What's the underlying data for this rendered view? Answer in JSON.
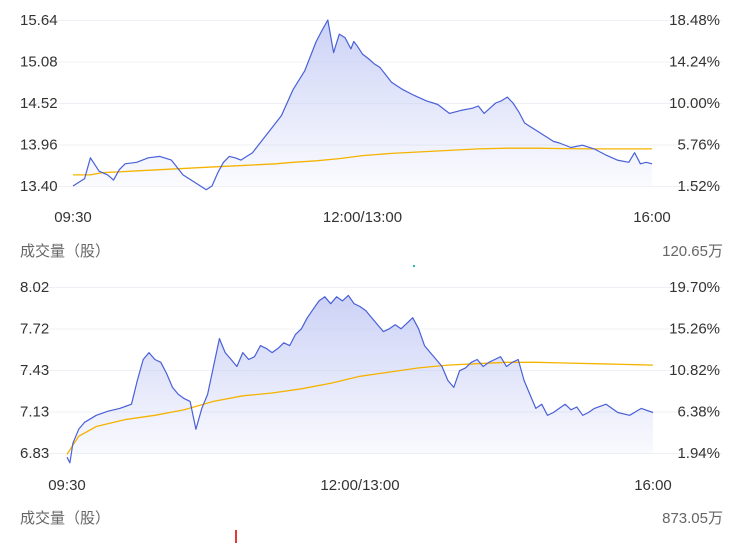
{
  "colors": {
    "price_line": "#4a60d8",
    "avg_line": "#f5b300",
    "fill_top": "#c3caf4",
    "grid": "#eef0f5",
    "text": "#333333",
    "up_tick": "#e53935",
    "marker": "#2eb6a8"
  },
  "charts": [
    {
      "volume_label": "成交量（股）",
      "volume_value": "120.65万"
    },
    {
      "volume_label": "成交量（股）",
      "volume_value": "873.05万"
    }
  ],
  "chart_data": [
    {
      "type": "line",
      "title": "",
      "x_ticks": [
        "09:30",
        "12:00/13:00",
        "16:00"
      ],
      "y_left_ticks": [
        "15.64",
        "15.08",
        "14.52",
        "13.96",
        "13.40"
      ],
      "y_right_ticks": [
        "18.48%",
        "14.24%",
        "10.00%",
        "5.76%",
        "1.52%"
      ],
      "ylim": [
        13.4,
        15.64
      ],
      "grid": true,
      "series": [
        {
          "role": "price",
          "x": [
            0,
            0.02,
            0.03,
            0.045,
            0.06,
            0.07,
            0.08,
            0.09,
            0.11,
            0.13,
            0.15,
            0.17,
            0.19,
            0.21,
            0.23,
            0.24,
            0.25,
            0.26,
            0.27,
            0.28,
            0.29,
            0.3,
            0.31,
            0.32,
            0.34,
            0.36,
            0.38,
            0.4,
            0.42,
            0.43,
            0.44,
            0.45,
            0.46,
            0.47,
            0.48,
            0.485,
            0.49,
            0.5,
            0.51,
            0.52,
            0.53,
            0.54,
            0.55,
            0.56,
            0.57,
            0.59,
            0.61,
            0.63,
            0.65,
            0.67,
            0.69,
            0.7,
            0.71,
            0.72,
            0.73,
            0.74,
            0.75,
            0.76,
            0.77,
            0.78,
            0.79,
            0.8,
            0.81,
            0.82,
            0.83,
            0.84,
            0.86,
            0.88,
            0.9,
            0.92,
            0.94,
            0.96,
            0.97,
            0.98,
            0.99,
            1.0
          ],
          "values": [
            13.4,
            13.5,
            13.78,
            13.6,
            13.55,
            13.48,
            13.62,
            13.7,
            13.72,
            13.78,
            13.8,
            13.75,
            13.55,
            13.45,
            13.35,
            13.4,
            13.58,
            13.72,
            13.8,
            13.78,
            13.75,
            13.8,
            13.85,
            13.95,
            14.15,
            14.35,
            14.7,
            14.95,
            15.35,
            15.5,
            15.64,
            15.2,
            15.45,
            15.4,
            15.25,
            15.35,
            15.3,
            15.18,
            15.12,
            15.05,
            15.0,
            14.9,
            14.8,
            14.75,
            14.7,
            14.62,
            14.55,
            14.5,
            14.38,
            14.42,
            14.45,
            14.48,
            14.38,
            14.45,
            14.52,
            14.55,
            14.6,
            14.52,
            14.4,
            14.25,
            14.2,
            14.15,
            14.1,
            14.05,
            14.0,
            13.98,
            13.92,
            13.95,
            13.9,
            13.82,
            13.75,
            13.72,
            13.85,
            13.7,
            13.72,
            13.7
          ]
        },
        {
          "role": "average",
          "x": [
            0,
            0.03,
            0.05,
            0.1,
            0.15,
            0.2,
            0.25,
            0.3,
            0.35,
            0.38,
            0.42,
            0.46,
            0.5,
            0.55,
            0.6,
            0.65,
            0.7,
            0.75,
            0.8,
            0.85,
            0.9,
            0.95,
            1.0
          ],
          "values": [
            13.55,
            13.55,
            13.58,
            13.6,
            13.62,
            13.64,
            13.66,
            13.68,
            13.7,
            13.72,
            13.74,
            13.77,
            13.81,
            13.84,
            13.86,
            13.88,
            13.9,
            13.91,
            13.91,
            13.905,
            13.9,
            13.9,
            13.9
          ]
        }
      ]
    },
    {
      "type": "line",
      "title": "",
      "x_ticks": [
        "09:30",
        "12:00/13:00",
        "16:00"
      ],
      "y_left_ticks": [
        "8.02",
        "7.72",
        "7.43",
        "7.13",
        "6.83"
      ],
      "y_right_ticks": [
        "19.70%",
        "15.26%",
        "10.82%",
        "6.38%",
        "1.94%"
      ],
      "ylim": [
        6.83,
        8.02
      ],
      "grid": true,
      "series": [
        {
          "role": "price",
          "x": [
            0,
            0.005,
            0.01,
            0.02,
            0.03,
            0.05,
            0.07,
            0.09,
            0.11,
            0.12,
            0.13,
            0.14,
            0.15,
            0.16,
            0.17,
            0.18,
            0.19,
            0.2,
            0.21,
            0.22,
            0.23,
            0.24,
            0.25,
            0.26,
            0.27,
            0.28,
            0.29,
            0.3,
            0.31,
            0.32,
            0.33,
            0.34,
            0.35,
            0.36,
            0.37,
            0.38,
            0.39,
            0.4,
            0.41,
            0.42,
            0.43,
            0.44,
            0.45,
            0.46,
            0.47,
            0.48,
            0.49,
            0.5,
            0.51,
            0.52,
            0.53,
            0.54,
            0.55,
            0.56,
            0.57,
            0.58,
            0.59,
            0.6,
            0.61,
            0.62,
            0.63,
            0.64,
            0.65,
            0.66,
            0.67,
            0.68,
            0.69,
            0.7,
            0.71,
            0.72,
            0.73,
            0.74,
            0.75,
            0.76,
            0.77,
            0.78,
            0.79,
            0.8,
            0.81,
            0.82,
            0.83,
            0.84,
            0.85,
            0.86,
            0.87,
            0.88,
            0.89,
            0.9,
            0.92,
            0.94,
            0.96,
            0.98,
            1.0
          ],
          "values": [
            6.8,
            6.76,
            6.9,
            7.0,
            7.05,
            7.1,
            7.13,
            7.15,
            7.18,
            7.35,
            7.5,
            7.55,
            7.5,
            7.48,
            7.4,
            7.3,
            7.25,
            7.22,
            7.2,
            7.0,
            7.15,
            7.25,
            7.45,
            7.65,
            7.55,
            7.5,
            7.45,
            7.55,
            7.5,
            7.52,
            7.6,
            7.58,
            7.55,
            7.58,
            7.62,
            7.6,
            7.68,
            7.72,
            7.8,
            7.86,
            7.92,
            7.95,
            7.9,
            7.95,
            7.92,
            7.96,
            7.9,
            7.88,
            7.85,
            7.8,
            7.75,
            7.7,
            7.72,
            7.75,
            7.72,
            7.76,
            7.8,
            7.72,
            7.6,
            7.55,
            7.5,
            7.45,
            7.35,
            7.3,
            7.42,
            7.44,
            7.48,
            7.5,
            7.45,
            7.48,
            7.5,
            7.52,
            7.45,
            7.48,
            7.5,
            7.35,
            7.25,
            7.15,
            7.18,
            7.1,
            7.12,
            7.15,
            7.18,
            7.14,
            7.16,
            7.1,
            7.12,
            7.15,
            7.18,
            7.12,
            7.1,
            7.15,
            7.12
          ]
        },
        {
          "role": "average",
          "x": [
            0,
            0.02,
            0.05,
            0.1,
            0.15,
            0.2,
            0.25,
            0.3,
            0.35,
            0.4,
            0.45,
            0.5,
            0.55,
            0.6,
            0.65,
            0.7,
            0.75,
            0.8,
            0.85,
            0.9,
            0.95,
            1.0
          ],
          "values": [
            6.82,
            6.95,
            7.02,
            7.07,
            7.1,
            7.14,
            7.2,
            7.24,
            7.26,
            7.29,
            7.33,
            7.38,
            7.41,
            7.44,
            7.46,
            7.47,
            7.48,
            7.48,
            7.475,
            7.47,
            7.465,
            7.46
          ]
        }
      ]
    }
  ]
}
